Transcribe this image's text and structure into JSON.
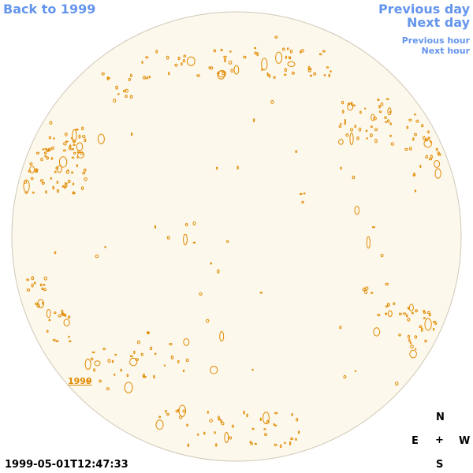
{
  "nav": {
    "back": "Back to 1999",
    "previous_day": "Previous day",
    "next_day": "Next day",
    "previous_hour": "Previous hour",
    "next_hour": "Next hour"
  },
  "year_label": "1999",
  "compass": {
    "n": "N",
    "e": "E",
    "center": "+",
    "w": "W",
    "s": "S"
  },
  "timestamp": "1999-05-01T12:47:33"
}
